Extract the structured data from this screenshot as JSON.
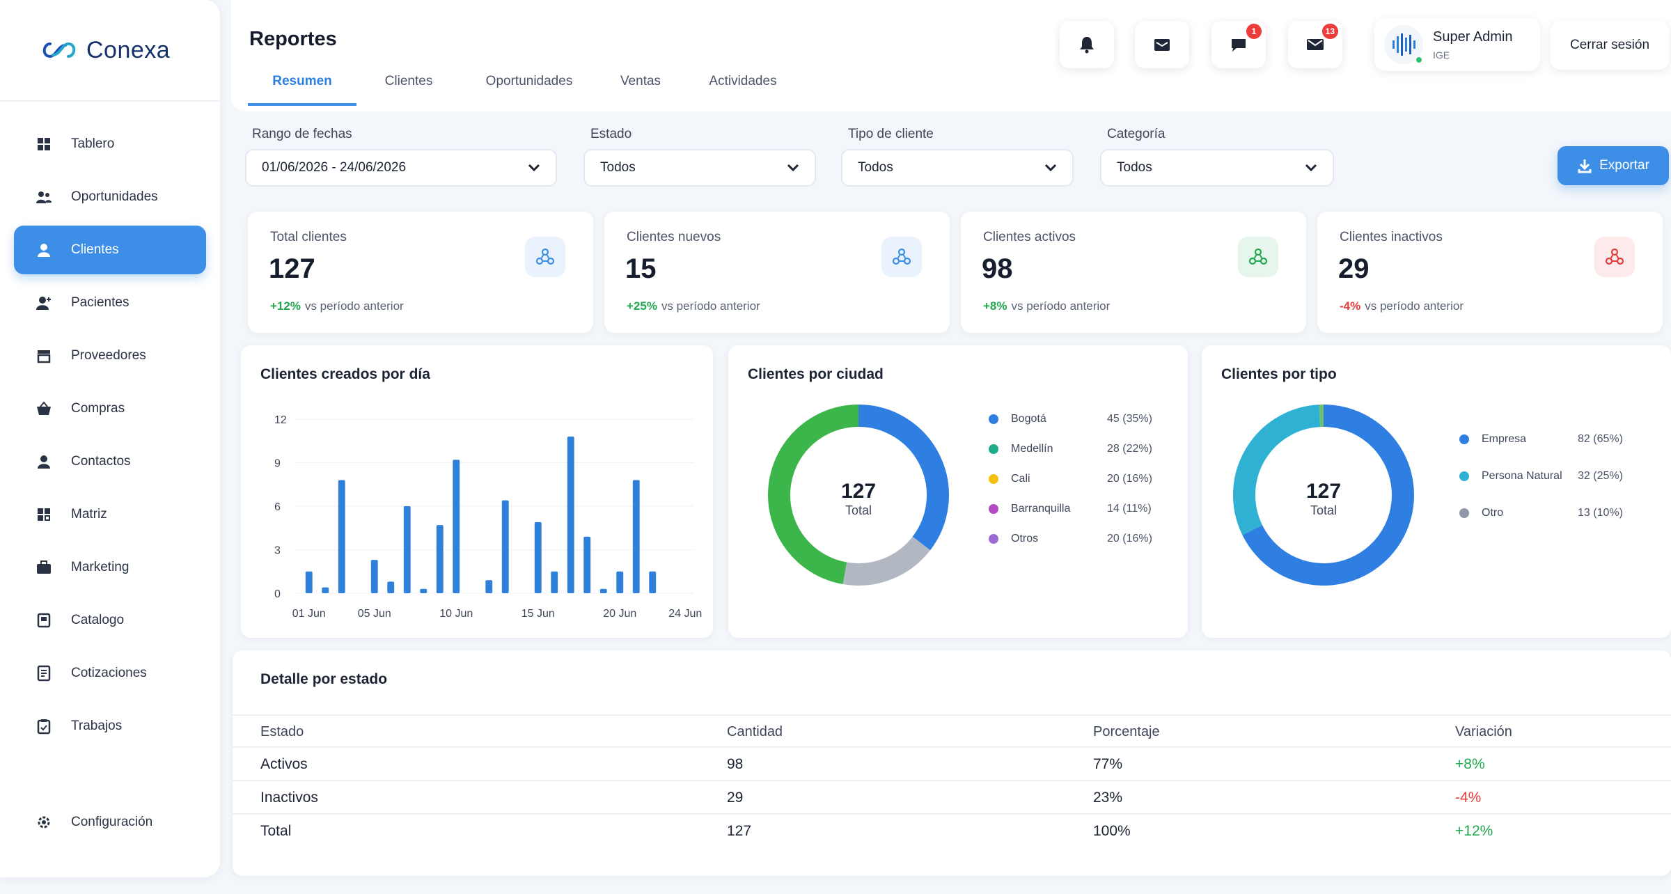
{
  "app": {
    "name": "Conexa"
  },
  "sidebar": {
    "items": [
      {
        "label": "Tablero",
        "icon": "grid-icon"
      },
      {
        "label": "Oportunidades",
        "icon": "users-icon"
      },
      {
        "label": "Clientes",
        "icon": "user-icon",
        "active": true
      },
      {
        "label": "Pacientes",
        "icon": "user-plus-icon"
      },
      {
        "label": "Proveedores",
        "icon": "store-icon"
      },
      {
        "label": "Compras",
        "icon": "basket-icon"
      },
      {
        "label": "Contactos",
        "icon": "contact-icon"
      },
      {
        "label": "Matriz",
        "icon": "matrix-icon"
      },
      {
        "label": "Marketing",
        "icon": "briefcase-icon"
      },
      {
        "label": "Catalogo",
        "icon": "catalog-icon"
      },
      {
        "label": "Cotizaciones",
        "icon": "document-icon"
      },
      {
        "label": "Trabajos",
        "icon": "clipboard-icon"
      }
    ],
    "config": {
      "label": "Configuración",
      "icon": "gear-icon"
    }
  },
  "header": {
    "title": "Reportes",
    "tabs": [
      "Resumen",
      "Clientes",
      "Oportunidades",
      "Ventas",
      "Actividades"
    ],
    "badges": {
      "messages": "1",
      "mail": "13"
    },
    "user": {
      "name": "Super Admin",
      "org": "IGE"
    },
    "logout_label": "Cerrar sesión"
  },
  "filters": {
    "date": {
      "label": "Rango de fechas",
      "value": "01/06/2026 - 24/06/2026"
    },
    "estado": {
      "label": "Estado",
      "value": "Todos"
    },
    "tipo": {
      "label": "Tipo de cliente",
      "value": "Todos"
    },
    "categoria": {
      "label": "Categoría",
      "value": "Todos"
    },
    "export_label": "Exportar"
  },
  "kpis": [
    {
      "title": "Total clientes",
      "value": "127",
      "change": "+12%",
      "note": "vs período anterior",
      "trend": "up",
      "color": "#3c8ee6"
    },
    {
      "title": "Clientes nuevos",
      "value": "15",
      "change": "+25%",
      "note": "vs período anterior",
      "trend": "up",
      "color": "#3c8ee6"
    },
    {
      "title": "Clientes activos",
      "value": "98",
      "change": "+8%",
      "note": "vs período anterior",
      "trend": "up",
      "color": "#22a94f"
    },
    {
      "title": "Clientes inactivos",
      "value": "29",
      "change": "-4%",
      "note": "vs período anterior",
      "trend": "down",
      "color": "#e53c3c"
    }
  ],
  "charts": {
    "daily_title": "Clientes creados por día",
    "city_title": "Clientes por ciudad",
    "type_title": "Clientes por tipo",
    "donut_total": "127",
    "donut_total_label": "Total"
  },
  "chart_data": [
    {
      "type": "bar",
      "title": "Clientes creados por día",
      "x": [
        1,
        2,
        3,
        4,
        5,
        6,
        7,
        8,
        9,
        10,
        11,
        12,
        13,
        14,
        15,
        16,
        17,
        18,
        19,
        20,
        21,
        22,
        23,
        24
      ],
      "values": [
        1.5,
        0.4,
        7.8,
        0,
        2.3,
        0.8,
        6,
        0.3,
        4.7,
        9.2,
        0,
        0.9,
        6.4,
        0,
        4.9,
        1.5,
        10.8,
        3.9,
        0.3,
        1.5,
        7.8,
        1.5,
        0,
        0
      ],
      "xticks": [
        "01 Jun",
        "05 Jun",
        "10 Jun",
        "15 Jun",
        "20 Jun",
        "24 Jun"
      ],
      "xtick_days": [
        1,
        5,
        10,
        15,
        20,
        24
      ],
      "yticks": [
        0,
        3,
        6,
        9,
        12
      ],
      "ylim": [
        0,
        12
      ],
      "color": "#2f80d8"
    },
    {
      "type": "pie",
      "title": "Clientes por ciudad",
      "labels": [
        "Bogotá",
        "Medellín",
        "Cali",
        "Barranquilla",
        "Otros"
      ],
      "values": [
        45,
        28,
        20,
        14,
        20
      ],
      "display": [
        "45 (35%)",
        "28 (22%)",
        "20 (16%)",
        "14 (11%)",
        "20 (16%)"
      ],
      "colors": [
        "#2f7fe3",
        "#1faa8a",
        "#f4c20d",
        "#b44bc2",
        "#9b6cd1"
      ],
      "ring_colors": [
        "#2f7fe3",
        "#b2b8c2",
        "#3cb64a"
      ],
      "ring_values": [
        45,
        22,
        60
      ]
    },
    {
      "type": "pie",
      "title": "Clientes por tipo",
      "labels": [
        "Empresa",
        "Persona Natural",
        "Otro"
      ],
      "values": [
        82,
        32,
        13
      ],
      "display": [
        "82 (65%)",
        "32 (25%)",
        "13 (10%)"
      ],
      "colors": [
        "#2f7fe3",
        "#2fb1d3",
        "#8e97a6"
      ],
      "ring_colors": [
        "#2f7fe3",
        "#2fb1d3",
        "#6bbf6a"
      ],
      "ring_values": [
        86,
        40,
        1
      ]
    }
  ],
  "table": {
    "title": "Detalle por estado",
    "headers": [
      "Estado",
      "Cantidad",
      "Porcentaje",
      "Variación"
    ],
    "rows": [
      [
        "Activos",
        "98",
        "77%",
        "+8%"
      ],
      [
        "Inactivos",
        "29",
        "23%",
        "-4%"
      ],
      [
        "Total",
        "127",
        "100%",
        "+12%"
      ]
    ]
  }
}
